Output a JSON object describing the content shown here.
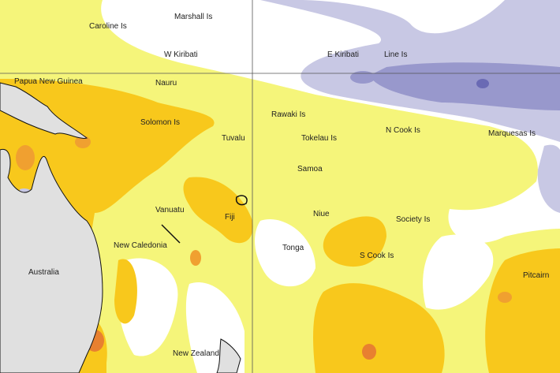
{
  "colors": {
    "ocean": "#ffffff",
    "light_yellow": "#f5f57a",
    "yellow_orange": "#f8c81c",
    "orange": "#f0a030",
    "dark_orange": "#e88030",
    "light_purple": "#c8c8e4",
    "mid_purple": "#9898cc",
    "dark_purple": "#6a6ab4",
    "land": "#e0e0e0",
    "grid": "#555555"
  },
  "labels": [
    {
      "id": "caroline",
      "text": "Caroline Is"
    },
    {
      "id": "marshall",
      "text": "Marshall Is"
    },
    {
      "id": "w-kiribati",
      "text": "W Kiribati"
    },
    {
      "id": "e-kiribati",
      "text": "E Kiribati"
    },
    {
      "id": "line",
      "text": "Line Is"
    },
    {
      "id": "png",
      "text": "Papua New Guinea"
    },
    {
      "id": "nauru",
      "text": "Nauru"
    },
    {
      "id": "solomon",
      "text": "Solomon Is"
    },
    {
      "id": "tuvalu",
      "text": "Tuvalu"
    },
    {
      "id": "rawaki",
      "text": "Rawaki Is"
    },
    {
      "id": "tokelau",
      "text": "Tokelau Is"
    },
    {
      "id": "n-cook",
      "text": "N Cook Is"
    },
    {
      "id": "marquesas",
      "text": "Marquesas Is"
    },
    {
      "id": "samoa",
      "text": "Samoa"
    },
    {
      "id": "vanuatu",
      "text": "Vanuatu"
    },
    {
      "id": "fiji",
      "text": "Fiji"
    },
    {
      "id": "niue",
      "text": "Niue"
    },
    {
      "id": "society",
      "text": "Society Is"
    },
    {
      "id": "new-caledonia",
      "text": "New Caledonia"
    },
    {
      "id": "tonga",
      "text": "Tonga"
    },
    {
      "id": "s-cook",
      "text": "S Cook Is"
    },
    {
      "id": "australia",
      "text": "Australia"
    },
    {
      "id": "pitcairn",
      "text": "Pitcairn"
    },
    {
      "id": "new-zealand",
      "text": "New Zealand"
    }
  ]
}
